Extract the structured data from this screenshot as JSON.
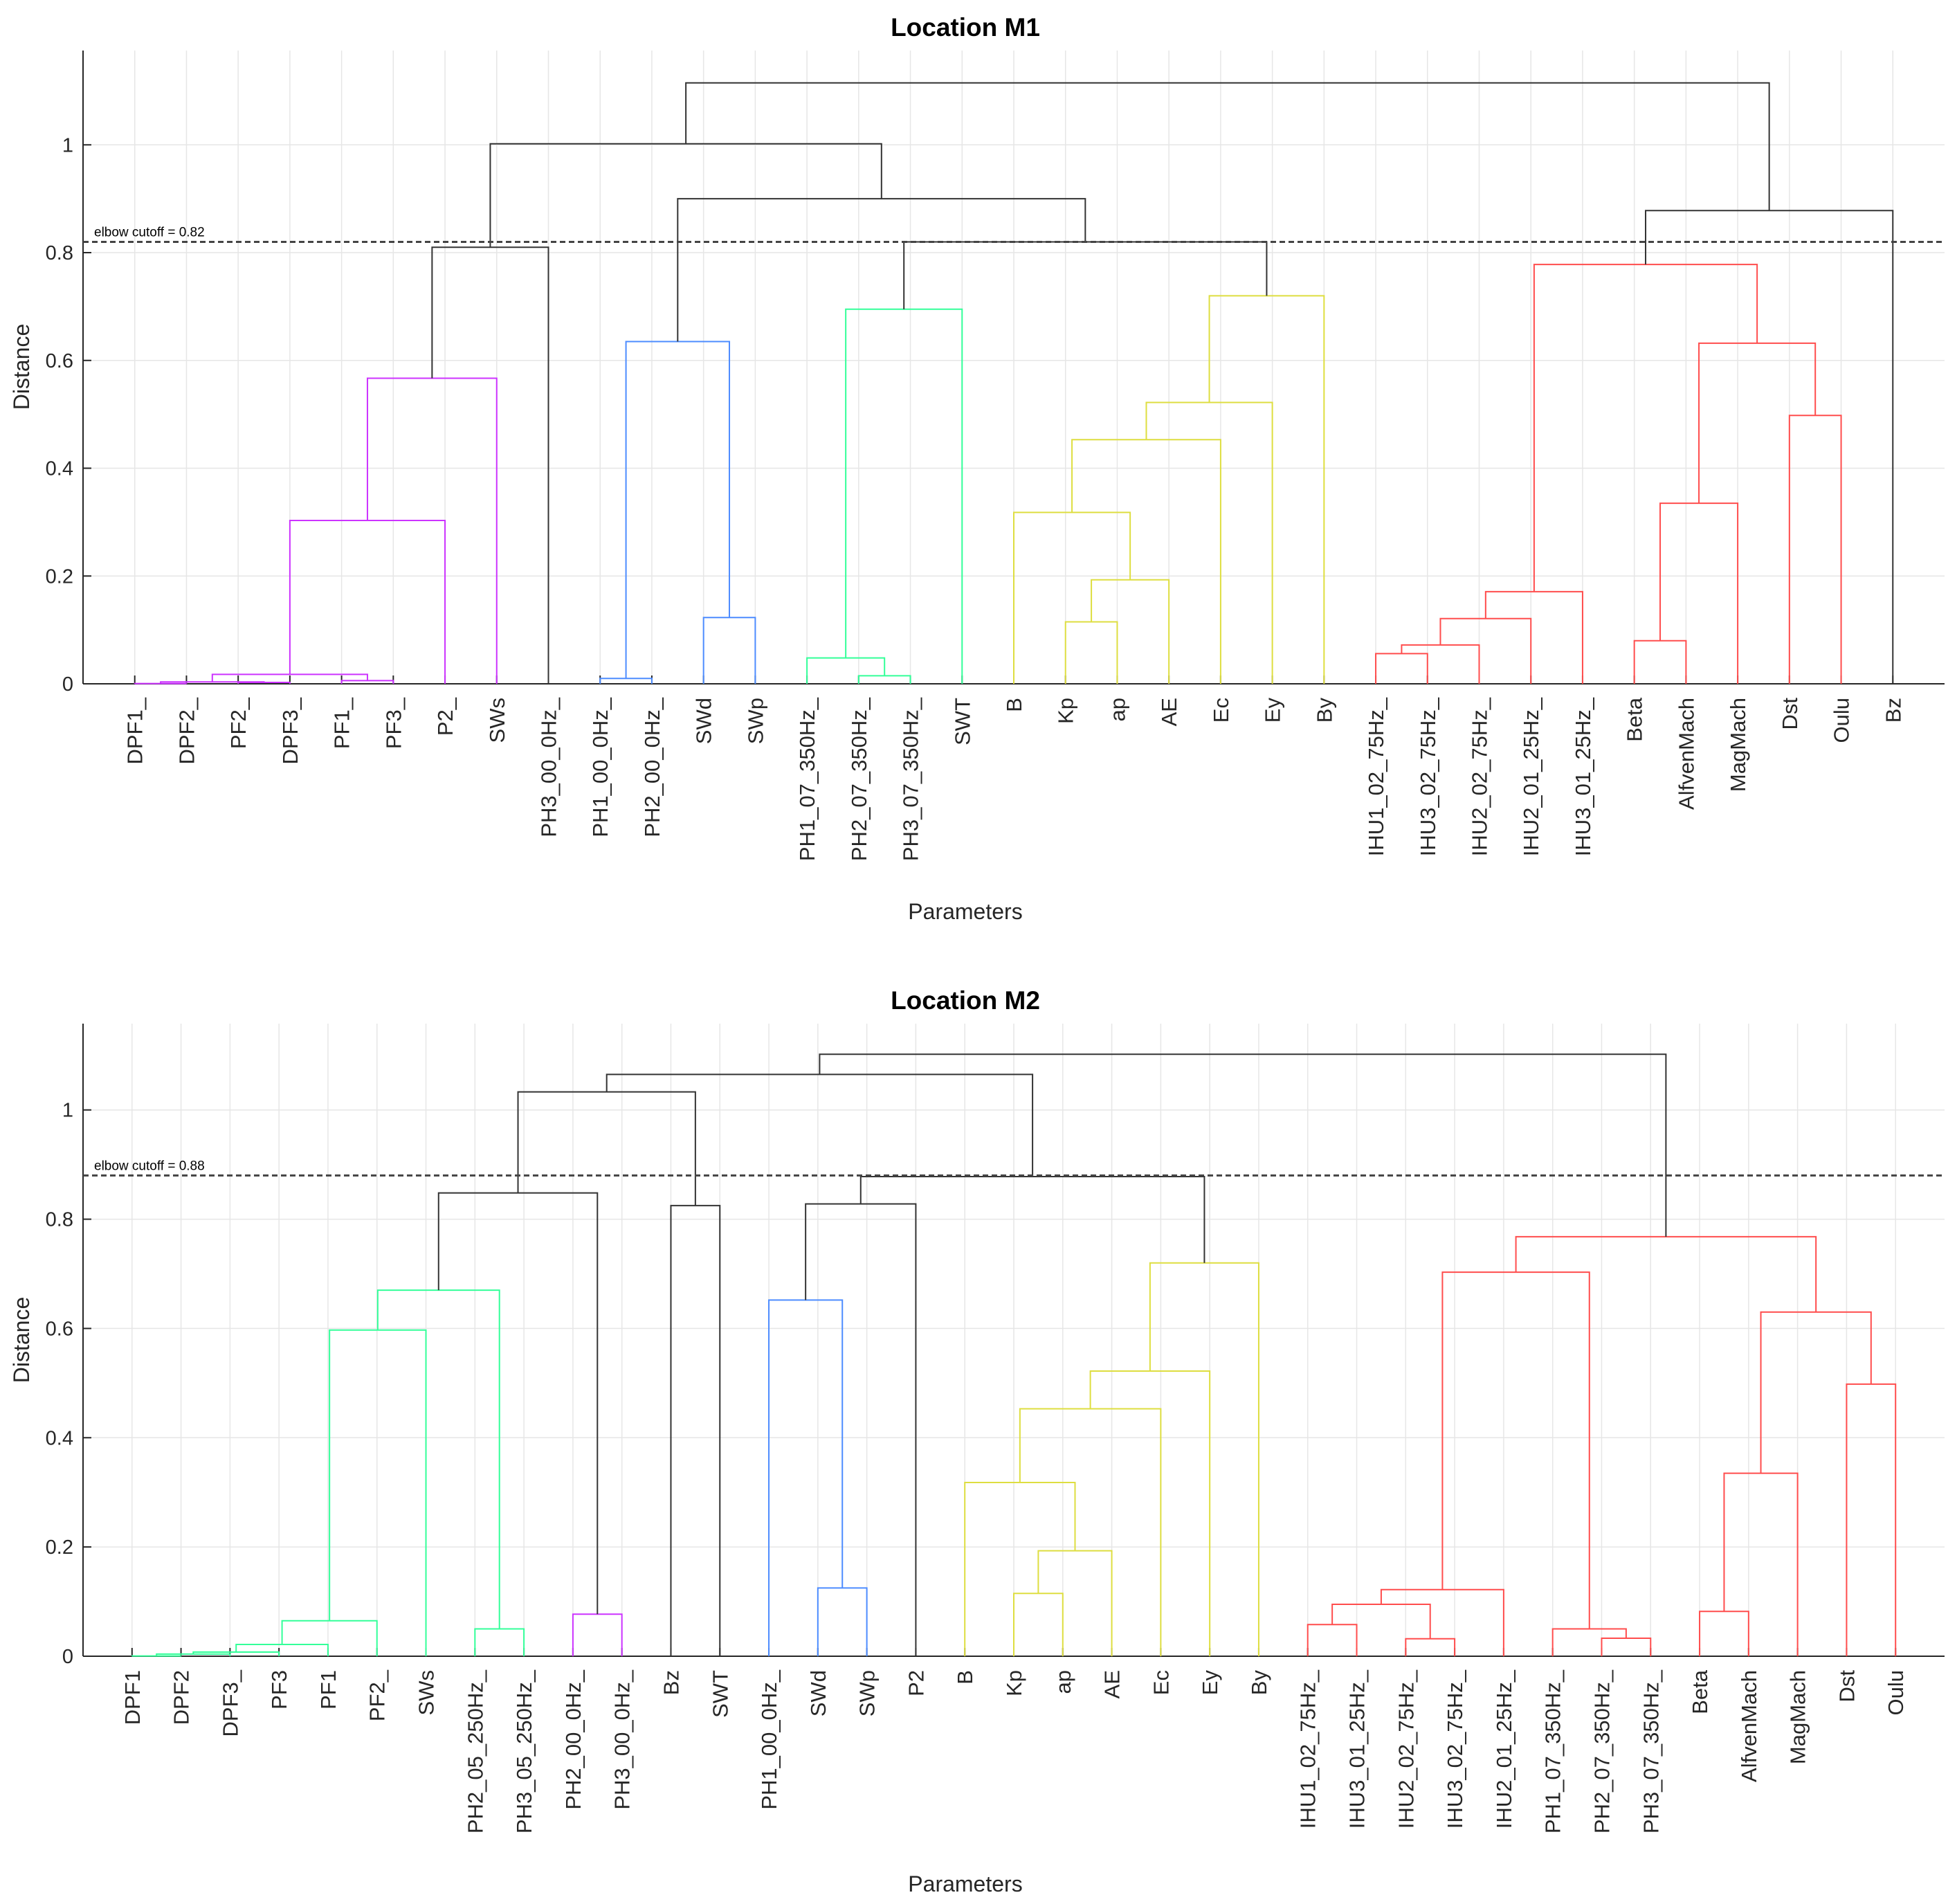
{
  "chart_data": [
    {
      "type": "dendrogram",
      "title": "Location M1",
      "xlabel": "Parameters",
      "ylabel": "Distance",
      "ylim": [
        0,
        1.175
      ],
      "yticks": [
        0,
        0.2,
        0.4,
        0.6,
        0.8,
        1
      ],
      "ytick_labels": [
        "0",
        "0.2",
        "0.4",
        "0.6",
        "0.8",
        "1"
      ],
      "grid": true,
      "cutoff": {
        "value": 0.82,
        "label": "elbow cutoff = 0.82"
      },
      "leaves": [
        "DPF1_",
        "DPF2_",
        "PF2_",
        "DPF3_",
        "PF1_",
        "PF3_",
        "P2_",
        "SWs",
        "PH3_00_0Hz_",
        "PH1_00_0Hz_",
        "PH2_00_0Hz_",
        "SWd",
        "SWp",
        "PH1_07_350Hz_",
        "PH2_07_350Hz_",
        "PH3_07_350Hz_",
        "SWT",
        "B",
        "Kp",
        "ap",
        "AE",
        "Ec",
        "Ey",
        "By",
        "IHU1_02_75Hz_",
        "IHU3_02_75Hz_",
        "IHU2_02_75Hz_",
        "IHU2_01_25Hz_",
        "IHU3_01_25Hz_",
        "Beta",
        "AlfvenMach",
        "MagMach",
        "Dst",
        "Oulu",
        "Bz"
      ],
      "merges": [
        [
          0,
          1,
          0.0005,
          "#cc33ff"
        ],
        [
          2,
          3,
          0.0025,
          "#cc33ff"
        ],
        [
          35,
          36,
          0.0035,
          "#cc33ff"
        ],
        [
          4,
          5,
          0.006,
          "#cc33ff"
        ],
        [
          37,
          38,
          0.0175,
          "#cc33ff"
        ],
        [
          39,
          6,
          0.303,
          "#cc33ff"
        ],
        [
          40,
          7,
          0.567,
          "#cc33ff"
        ],
        [
          41,
          8,
          0.81,
          "#333333"
        ],
        [
          9,
          10,
          0.01,
          "#4d8cff"
        ],
        [
          11,
          12,
          0.123,
          "#4d8cff"
        ],
        [
          43,
          44,
          0.635,
          "#4d8cff"
        ],
        [
          14,
          15,
          0.015,
          "#33ff99"
        ],
        [
          13,
          46,
          0.048,
          "#33ff99"
        ],
        [
          47,
          16,
          0.695,
          "#33ff99"
        ],
        [
          18,
          19,
          0.115,
          "#dede40"
        ],
        [
          49,
          20,
          0.193,
          "#dede40"
        ],
        [
          17,
          50,
          0.318,
          "#dede40"
        ],
        [
          51,
          21,
          0.453,
          "#dede40"
        ],
        [
          52,
          22,
          0.522,
          "#dede40"
        ],
        [
          53,
          23,
          0.72,
          "#dede40"
        ],
        [
          48,
          54,
          0.82,
          "#333333"
        ],
        [
          45,
          55,
          0.9,
          "#333333"
        ],
        [
          42,
          56,
          1.002,
          "#333333"
        ],
        [
          24,
          25,
          0.056,
          "#ff4d4d"
        ],
        [
          58,
          26,
          0.072,
          "#ff4d4d"
        ],
        [
          59,
          27,
          0.121,
          "#ff4d4d"
        ],
        [
          60,
          28,
          0.171,
          "#ff4d4d"
        ],
        [
          29,
          30,
          0.08,
          "#ff4d4d"
        ],
        [
          62,
          31,
          0.335,
          "#ff4d4d"
        ],
        [
          32,
          33,
          0.498,
          "#ff4d4d"
        ],
        [
          63,
          64,
          0.632,
          "#ff4d4d"
        ],
        [
          61,
          65,
          0.778,
          "#ff4d4d"
        ],
        [
          66,
          34,
          0.878,
          "#333333"
        ],
        [
          57,
          67,
          1.115,
          "#333333"
        ]
      ]
    },
    {
      "type": "dendrogram",
      "title": "Location M2",
      "xlabel": "Parameters",
      "ylabel": "Distance",
      "ylim": [
        0,
        1.158
      ],
      "yticks": [
        0,
        0.2,
        0.4,
        0.6,
        0.8,
        1
      ],
      "ytick_labels": [
        "0",
        "0.2",
        "0.4",
        "0.6",
        "0.8",
        "1"
      ],
      "grid": true,
      "cutoff": {
        "value": 0.88,
        "label": "elbow cutoff = 0.88"
      },
      "leaves": [
        "DPF1",
        "DPF2",
        "DPF3_",
        "PF3",
        "PF1",
        "PF2_",
        "SWs",
        "PH2_05_250Hz_",
        "PH3_05_250Hz_",
        "PH2_00_0Hz_",
        "PH3_00_0Hz_",
        "Bz",
        "SWT",
        "PH1_00_0Hz_",
        "SWd",
        "SWp",
        "P2",
        "B",
        "Kp",
        "ap",
        "AE",
        "Ec",
        "Ey",
        "By",
        "IHU1_02_75Hz_",
        "IHU3_01_25Hz_",
        "IHU2_02_75Hz_",
        "IHU3_02_75Hz_",
        "IHU2_01_25Hz_",
        "PH1_07_350Hz_",
        "PH2_07_350Hz_",
        "PH3_07_350Hz_",
        "Beta",
        "AlfvenMach",
        "MagMach",
        "Dst",
        "Oulu"
      ],
      "merges": [
        [
          0,
          1,
          0.0005,
          "#33ff99"
        ],
        [
          37,
          2,
          0.004,
          "#33ff99"
        ],
        [
          38,
          3,
          0.0076,
          "#33ff99"
        ],
        [
          39,
          4,
          0.0215,
          "#33ff99"
        ],
        [
          40,
          5,
          0.065,
          "#33ff99"
        ],
        [
          41,
          6,
          0.597,
          "#33ff99"
        ],
        [
          7,
          8,
          0.05,
          "#33ff99"
        ],
        [
          42,
          43,
          0.67,
          "#33ff99"
        ],
        [
          9,
          10,
          0.077,
          "#cc33ff"
        ],
        [
          44,
          45,
          0.848,
          "#333333"
        ],
        [
          11,
          12,
          0.825,
          "#333333"
        ],
        [
          46,
          47,
          1.033,
          "#333333"
        ],
        [
          14,
          15,
          0.125,
          "#4d8cff"
        ],
        [
          13,
          49,
          0.652,
          "#4d8cff"
        ],
        [
          50,
          16,
          0.828,
          "#333333"
        ],
        [
          18,
          19,
          0.115,
          "#dede40"
        ],
        [
          52,
          20,
          0.193,
          "#dede40"
        ],
        [
          17,
          53,
          0.318,
          "#dede40"
        ],
        [
          54,
          21,
          0.453,
          "#dede40"
        ],
        [
          55,
          22,
          0.522,
          "#dede40"
        ],
        [
          56,
          23,
          0.72,
          "#dede40"
        ],
        [
          51,
          57,
          0.878,
          "#333333"
        ],
        [
          48,
          58,
          1.065,
          "#333333"
        ],
        [
          24,
          25,
          0.058,
          "#ff4d4d"
        ],
        [
          26,
          27,
          0.032,
          "#ff4d4d"
        ],
        [
          60,
          61,
          0.095,
          "#ff4d4d"
        ],
        [
          62,
          28,
          0.122,
          "#ff4d4d"
        ],
        [
          30,
          31,
          0.033,
          "#ff4d4d"
        ],
        [
          29,
          64,
          0.05,
          "#ff4d4d"
        ],
        [
          63,
          65,
          0.703,
          "#ff4d4d"
        ],
        [
          32,
          33,
          0.082,
          "#ff4d4d"
        ],
        [
          67,
          34,
          0.335,
          "#ff4d4d"
        ],
        [
          35,
          36,
          0.498,
          "#ff4d4d"
        ],
        [
          68,
          69,
          0.63,
          "#ff4d4d"
        ],
        [
          66,
          70,
          0.768,
          "#ff4d4d"
        ],
        [
          59,
          71,
          1.102,
          "#333333"
        ]
      ]
    }
  ]
}
